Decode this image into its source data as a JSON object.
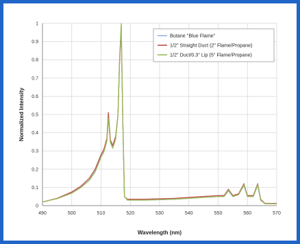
{
  "chart_data": {
    "type": "line",
    "title": "",
    "xlabel": "Wavelength (nm)",
    "ylabel": "Normalized Intensity",
    "xlim": [
      490,
      570
    ],
    "ylim": [
      0,
      1
    ],
    "x_ticks": [
      490,
      500,
      510,
      520,
      530,
      540,
      550,
      560,
      570
    ],
    "y_ticks": [
      0,
      0.1,
      0.2,
      0.3,
      0.4,
      0.5,
      0.6,
      0.7,
      0.8,
      0.9,
      1
    ],
    "grid": true,
    "legend_position": "top-right",
    "series": [
      {
        "name": "Butane \"Blue Flame\"",
        "color": "#8fb3dc",
        "x": [
          490,
          495,
          500,
          503,
          506,
          508,
          509,
          510,
          511,
          512,
          512.5,
          513.2,
          514,
          515,
          515.8,
          516.3,
          516.9,
          517.4,
          518,
          519,
          525,
          535,
          545,
          550,
          552,
          553.5,
          555,
          557,
          558.8,
          560,
          562,
          563.5,
          564.5,
          566,
          570
        ],
        "y": [
          0.02,
          0.04,
          0.07,
          0.1,
          0.14,
          0.19,
          0.23,
          0.27,
          0.3,
          0.36,
          0.49,
          0.35,
          0.32,
          0.37,
          0.5,
          0.78,
          0.99,
          0.5,
          0.05,
          0.03,
          0.03,
          0.035,
          0.045,
          0.05,
          0.05,
          0.08,
          0.05,
          0.06,
          0.11,
          0.05,
          0.05,
          0.11,
          0.03,
          0.01,
          0.01
        ]
      },
      {
        "name": "1/2\" Straight Duct (2\" Flame/Propane)",
        "color": "#c0504d",
        "x": [
          490,
          495,
          500,
          503,
          506,
          508,
          509,
          510,
          511,
          512,
          512.5,
          513.2,
          514,
          515,
          515.8,
          516.3,
          516.9,
          517.4,
          518,
          519,
          525,
          535,
          545,
          550,
          552,
          553.5,
          555,
          557,
          558.8,
          560,
          562,
          563.5,
          564.5,
          566,
          570
        ],
        "y": [
          0.02,
          0.04,
          0.075,
          0.105,
          0.15,
          0.2,
          0.24,
          0.28,
          0.31,
          0.37,
          0.51,
          0.36,
          0.33,
          0.38,
          0.5,
          0.77,
          0.98,
          0.5,
          0.05,
          0.035,
          0.035,
          0.04,
          0.05,
          0.055,
          0.055,
          0.09,
          0.055,
          0.065,
          0.12,
          0.055,
          0.055,
          0.12,
          0.035,
          0.012,
          0.012
        ]
      },
      {
        "name": "1/2\" Duct/0.3\" Lip (5\" Flame/Propane)",
        "color": "#9bbb59",
        "x": [
          490,
          495,
          500,
          503,
          506,
          508,
          509,
          510,
          511,
          512,
          512.5,
          513.2,
          514,
          515,
          515.8,
          516.3,
          516.9,
          517.4,
          518,
          519,
          525,
          535,
          545,
          550,
          552,
          553.5,
          555,
          557,
          558.8,
          560,
          562,
          563.5,
          564.5,
          566,
          570
        ],
        "y": [
          0.02,
          0.038,
          0.068,
          0.098,
          0.138,
          0.185,
          0.225,
          0.265,
          0.295,
          0.355,
          0.48,
          0.345,
          0.315,
          0.365,
          0.5,
          0.79,
          1.0,
          0.5,
          0.05,
          0.03,
          0.03,
          0.035,
          0.045,
          0.05,
          0.05,
          0.085,
          0.05,
          0.06,
          0.115,
          0.05,
          0.05,
          0.115,
          0.03,
          0.01,
          0.01
        ]
      }
    ]
  }
}
